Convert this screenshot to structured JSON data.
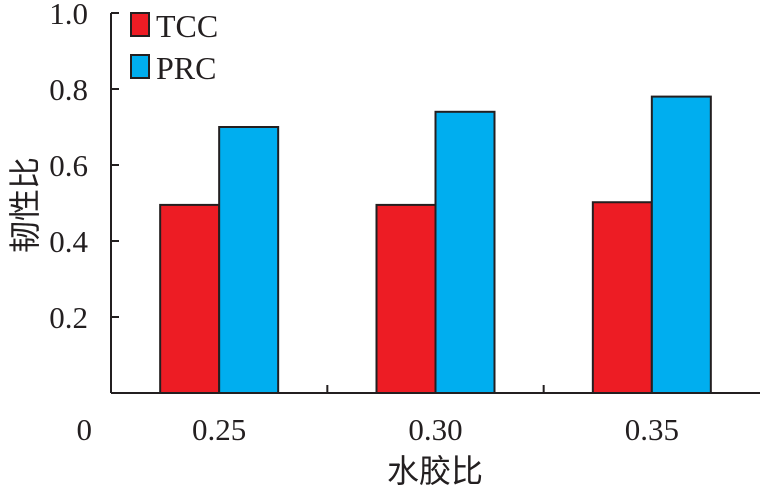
{
  "chart_data": {
    "type": "bar",
    "title": "",
    "xlabel": "水胶比",
    "ylabel": "韧性比",
    "categories": [
      "0.25",
      "0.30",
      "0.35"
    ],
    "series": [
      {
        "name": "TCC",
        "values": [
          0.495,
          0.495,
          0.502
        ],
        "color": "#ed1c24"
      },
      {
        "name": "PRC",
        "values": [
          0.7,
          0.74,
          0.78
        ],
        "color": "#00aeef"
      }
    ],
    "ylim": [
      0,
      1.0
    ],
    "yticks": [
      "0",
      "0.2",
      "0.4",
      "0.6",
      "0.8",
      "1.0"
    ],
    "yticks_values": [
      0,
      0.2,
      0.4,
      0.6,
      0.8,
      1.0
    ],
    "grid": false,
    "legend_position": "top-left"
  }
}
